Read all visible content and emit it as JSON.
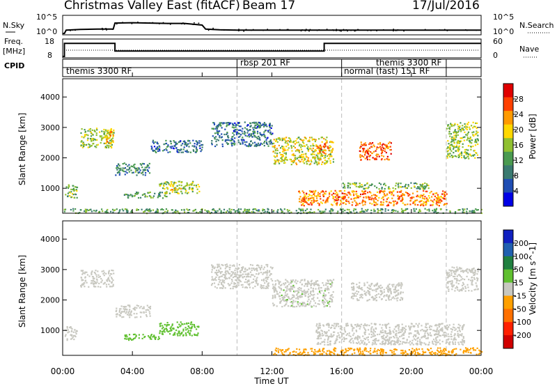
{
  "header": {
    "title": "Christmas Valley East (fitACF)",
    "beam": "Beam 17",
    "date": "17/Jul/2016"
  },
  "nsky_panel": {
    "left_label": "N.Sky",
    "right_label": "N.Search",
    "ticks_left": [
      "10^5",
      "10^0"
    ],
    "ticks_right": [
      "10^5",
      "10^0"
    ]
  },
  "freq_panel": {
    "left_label_1": "Freq.",
    "left_label_2": "[MHz]",
    "right_label": "Nave",
    "ticks_left": [
      "18",
      "8"
    ],
    "ticks_right": [
      "60",
      "0"
    ]
  },
  "cpid_panel": {
    "label": "CPID",
    "modes": [
      {
        "text": "themis 3300 RF",
        "start_h": 0.0
      },
      {
        "text": "rbsp 201 RF",
        "start_h": 10.0
      },
      {
        "text": "normal (fast) 151 RF",
        "start_h": 16.0
      },
      {
        "text": "themis 3300 RF",
        "start_h": 18.0
      }
    ],
    "boundaries_h": [
      10.0,
      16.0,
      22.0
    ]
  },
  "power_panel": {
    "ylabel": "Slant Range [km]",
    "ytick_labels": [
      "1000",
      "2000",
      "3000",
      "4000"
    ],
    "colorbar_label": "Power [dB]",
    "colorbar_ticks": [
      "28",
      "24",
      "20",
      "16",
      "12",
      "8",
      "4"
    ],
    "colorbar_colors": [
      "#0000e6",
      "#1f4db3",
      "#3a7a70",
      "#4a9a50",
      "#90c030",
      "#ffd800",
      "#ff9a00",
      "#ff4000",
      "#e00000"
    ]
  },
  "velocity_panel": {
    "ylabel": "Slant Range [km]",
    "ytick_labels": [
      "1000",
      "2000",
      "3000",
      "4000"
    ],
    "colorbar_label": "Velocity [m s^-1]",
    "colorbar_ticks": [
      "200",
      "100",
      "50",
      "15",
      "-15",
      "-50",
      "-100",
      "-200"
    ],
    "colorbar_colors": [
      "#1020c0",
      "#2060b0",
      "#208040",
      "#60c030",
      "#c8c8c0",
      "#ffa000",
      "#ff7000",
      "#ff2000",
      "#d00000"
    ]
  },
  "xaxis": {
    "label": "Time UT",
    "tick_labels": [
      "00:00",
      "04:00",
      "08:00",
      "12:00",
      "16:00",
      "20:00",
      "00:00"
    ]
  },
  "chart_data": [
    {
      "type": "line",
      "title": "N.Sky / N.Search",
      "x": [
        0.0,
        0.1,
        0.2,
        1.0,
        2.0,
        2.9,
        3.0,
        4.0,
        5.0,
        6.0,
        7.0,
        8.0,
        8.2,
        9.0,
        10.0,
        12.0,
        14.0,
        16.0,
        18.0,
        20.0,
        22.0,
        24.0
      ],
      "series": [
        {
          "values": [
            0,
            0,
            1.0,
            1.2,
            1.3,
            1.3,
            3.1,
            3.2,
            3.1,
            3.0,
            3.0,
            2.5,
            1.3,
            1.1,
            1.0,
            1.0,
            1.0,
            1.0,
            1.0,
            1.0,
            1.0,
            1.0
          ]
        }
      ],
      "ylim": [
        0,
        5
      ]
    },
    {
      "type": "line",
      "title": "Freq.",
      "x": [
        0.0,
        0.1,
        3.0,
        15.0,
        24.0
      ],
      "series": [
        {
          "values": [
            8.0,
            16.5,
            11.5,
            16.5,
            16.5
          ]
        }
      ],
      "ylim": [
        8,
        18
      ]
    },
    {
      "type": "heatmap",
      "title": "Power",
      "xlim": [
        0,
        24
      ],
      "ylim": [
        180,
        4600
      ],
      "blobs": [
        {
          "t0": 0.1,
          "t1": 0.8,
          "r0": 700,
          "r1": 1150,
          "v": 14
        },
        {
          "t0": 1.0,
          "t1": 2.9,
          "r0": 2350,
          "r1": 3000,
          "v": 16
        },
        {
          "t0": 2.4,
          "t1": 2.9,
          "r0": 2500,
          "r1": 3000,
          "v": 22
        },
        {
          "t0": 3.0,
          "t1": 5.0,
          "r0": 1450,
          "r1": 1850,
          "v": 10
        },
        {
          "t0": 3.5,
          "t1": 6.0,
          "r0": 700,
          "r1": 900,
          "v": 12
        },
        {
          "t0": 5.5,
          "t1": 7.8,
          "r0": 850,
          "r1": 1250,
          "v": 16
        },
        {
          "t0": 6.2,
          "t1": 6.8,
          "r0": 950,
          "r1": 1150,
          "v": 22
        },
        {
          "t0": 5.0,
          "t1": 8.0,
          "r0": 2200,
          "r1": 2600,
          "v": 8
        },
        {
          "t0": 8.5,
          "t1": 12.0,
          "r0": 2400,
          "r1": 3200,
          "v": 8
        },
        {
          "t0": 12.0,
          "t1": 15.5,
          "r0": 1800,
          "r1": 2700,
          "v": 18
        },
        {
          "t0": 14.5,
          "t1": 15.2,
          "r0": 2150,
          "r1": 2550,
          "v": 24
        },
        {
          "t0": 17.0,
          "t1": 18.8,
          "r0": 1950,
          "r1": 2550,
          "v": 26
        },
        {
          "t0": 13.5,
          "t1": 22.0,
          "r0": 450,
          "r1": 950,
          "v": 24
        },
        {
          "t0": 16.0,
          "t1": 21.0,
          "r0": 1000,
          "r1": 1200,
          "v": 14
        },
        {
          "t0": 22.0,
          "t1": 23.8,
          "r0": 2000,
          "r1": 3200,
          "v": 16
        },
        {
          "t0": 0.0,
          "t1": 24.0,
          "r0": 200,
          "r1": 350,
          "v": 12
        }
      ]
    },
    {
      "type": "heatmap",
      "title": "Velocity",
      "xlim": [
        0,
        24
      ],
      "ylim": [
        180,
        4600
      ],
      "blobs": [
        {
          "t0": 0.1,
          "t1": 0.8,
          "r0": 700,
          "r1": 1150,
          "v": 0
        },
        {
          "t0": 1.0,
          "t1": 2.9,
          "r0": 2450,
          "r1": 3000,
          "v": 0
        },
        {
          "t0": 3.0,
          "t1": 5.0,
          "r0": 1450,
          "r1": 1850,
          "v": 0
        },
        {
          "t0": 3.5,
          "t1": 5.5,
          "r0": 700,
          "r1": 900,
          "v": 40
        },
        {
          "t0": 5.5,
          "t1": 7.8,
          "r0": 850,
          "r1": 1300,
          "v": 60
        },
        {
          "t0": 8.5,
          "t1": 12.0,
          "r0": 2400,
          "r1": 3200,
          "v": 0
        },
        {
          "t0": 12.0,
          "t1": 15.5,
          "r0": 1800,
          "r1": 2700,
          "v": 20
        },
        {
          "t0": 16.5,
          "t1": 19.5,
          "r0": 2000,
          "r1": 2600,
          "v": 0
        },
        {
          "t0": 14.5,
          "t1": 23.0,
          "r0": 550,
          "r1": 1250,
          "v": 0
        },
        {
          "t0": 22.0,
          "t1": 23.8,
          "r0": 2300,
          "r1": 3100,
          "v": 0
        },
        {
          "t0": 12.0,
          "t1": 24.0,
          "r0": 200,
          "r1": 450,
          "v": -60
        }
      ]
    }
  ]
}
